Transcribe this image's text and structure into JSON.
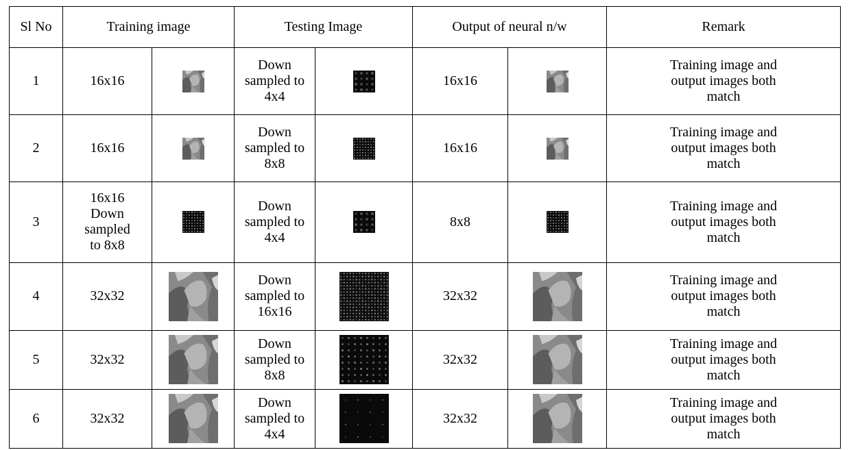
{
  "headers": {
    "sl_no": "Sl No",
    "training": "Training image",
    "testing": "Testing Image",
    "output": "Output of neural n/w",
    "remark": "Remark"
  },
  "rows": [
    {
      "sl": "1",
      "train_lines": [
        "16x16"
      ],
      "train_img": "lena-16",
      "test_lines": [
        "Down",
        "sampled to",
        "4x4"
      ],
      "test_img": "grid-4",
      "out_label": "16x16",
      "out_img": "lena-16",
      "remark_lines": [
        "Training image and",
        "output images both",
        "match"
      ]
    },
    {
      "sl": "2",
      "train_lines": [
        "16x16"
      ],
      "train_img": "lena-16",
      "test_lines": [
        "Down",
        "sampled to",
        "8x8"
      ],
      "test_img": "grid-8",
      "out_label": "16x16",
      "out_img": "lena-16",
      "remark_lines": [
        "Training image and",
        "output images both",
        "match"
      ]
    },
    {
      "sl": "3",
      "train_lines": [
        "16x16",
        "Down",
        "sampled",
        "to 8x8"
      ],
      "train_img": "grid-8",
      "test_lines": [
        "Down",
        "sampled to",
        "4x4"
      ],
      "test_img": "grid-4",
      "out_label": "8x8",
      "out_img": "grid-8",
      "remark_lines": [
        "Training image and",
        "output images both",
        "match"
      ]
    },
    {
      "sl": "4",
      "train_lines": [
        "32x32"
      ],
      "train_img": "lena-32",
      "test_lines": [
        "Down",
        "sampled to",
        "16x16"
      ],
      "test_img": "grid-16",
      "out_label": "32x32",
      "out_img": "lena-32",
      "remark_lines": [
        "Training image and",
        "output images both",
        "match"
      ]
    },
    {
      "sl": "5",
      "train_lines": [
        "32x32"
      ],
      "train_img": "lena-32",
      "test_lines": [
        "Down",
        "sampled to",
        "8x8"
      ],
      "test_img": "dots-8",
      "out_label": "32x32",
      "out_img": "lena-32",
      "remark_lines": [
        "Training image and",
        "output images both",
        "match"
      ]
    },
    {
      "sl": "6",
      "train_lines": [
        "32x32"
      ],
      "train_img": "lena-32",
      "test_lines": [
        "Down",
        "sampled to",
        "4x4"
      ],
      "test_img": "dots-4",
      "out_label": "32x32",
      "out_img": "lena-32",
      "remark_lines": [
        "Training image and",
        "output images both",
        "match"
      ]
    }
  ]
}
